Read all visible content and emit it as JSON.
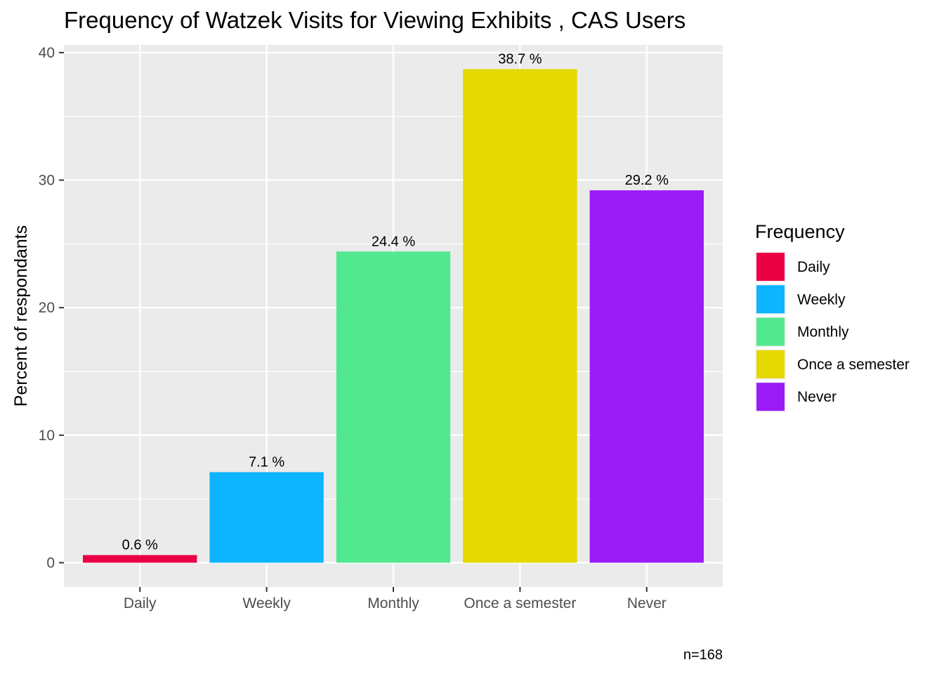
{
  "chart_data": {
    "type": "bar",
    "title": "Frequency of Watzek Visits for Viewing Exhibits , CAS Users",
    "xlabel": "",
    "ylabel": "Percent of respondants",
    "categories": [
      "Daily",
      "Weekly",
      "Monthly",
      "Once a semester",
      "Never"
    ],
    "values": [
      0.6,
      7.1,
      24.4,
      38.7,
      29.2
    ],
    "data_labels": [
      "0.6 %",
      "7.1 %",
      "24.4 %",
      "38.7 %",
      "29.2 %"
    ],
    "colors": [
      "#EB0046",
      "#0DB4FF",
      "#52E88F",
      "#E5D800",
      "#9B1BF7"
    ],
    "yticks": [
      0,
      10,
      20,
      30,
      40
    ],
    "ylim": [
      -1.9,
      40.6
    ],
    "grid": true,
    "legend": {
      "title": "Frequency",
      "position": "right",
      "entries": [
        "Daily",
        "Weekly",
        "Monthly",
        "Once a semester",
        "Never"
      ]
    },
    "caption": "n=168"
  }
}
